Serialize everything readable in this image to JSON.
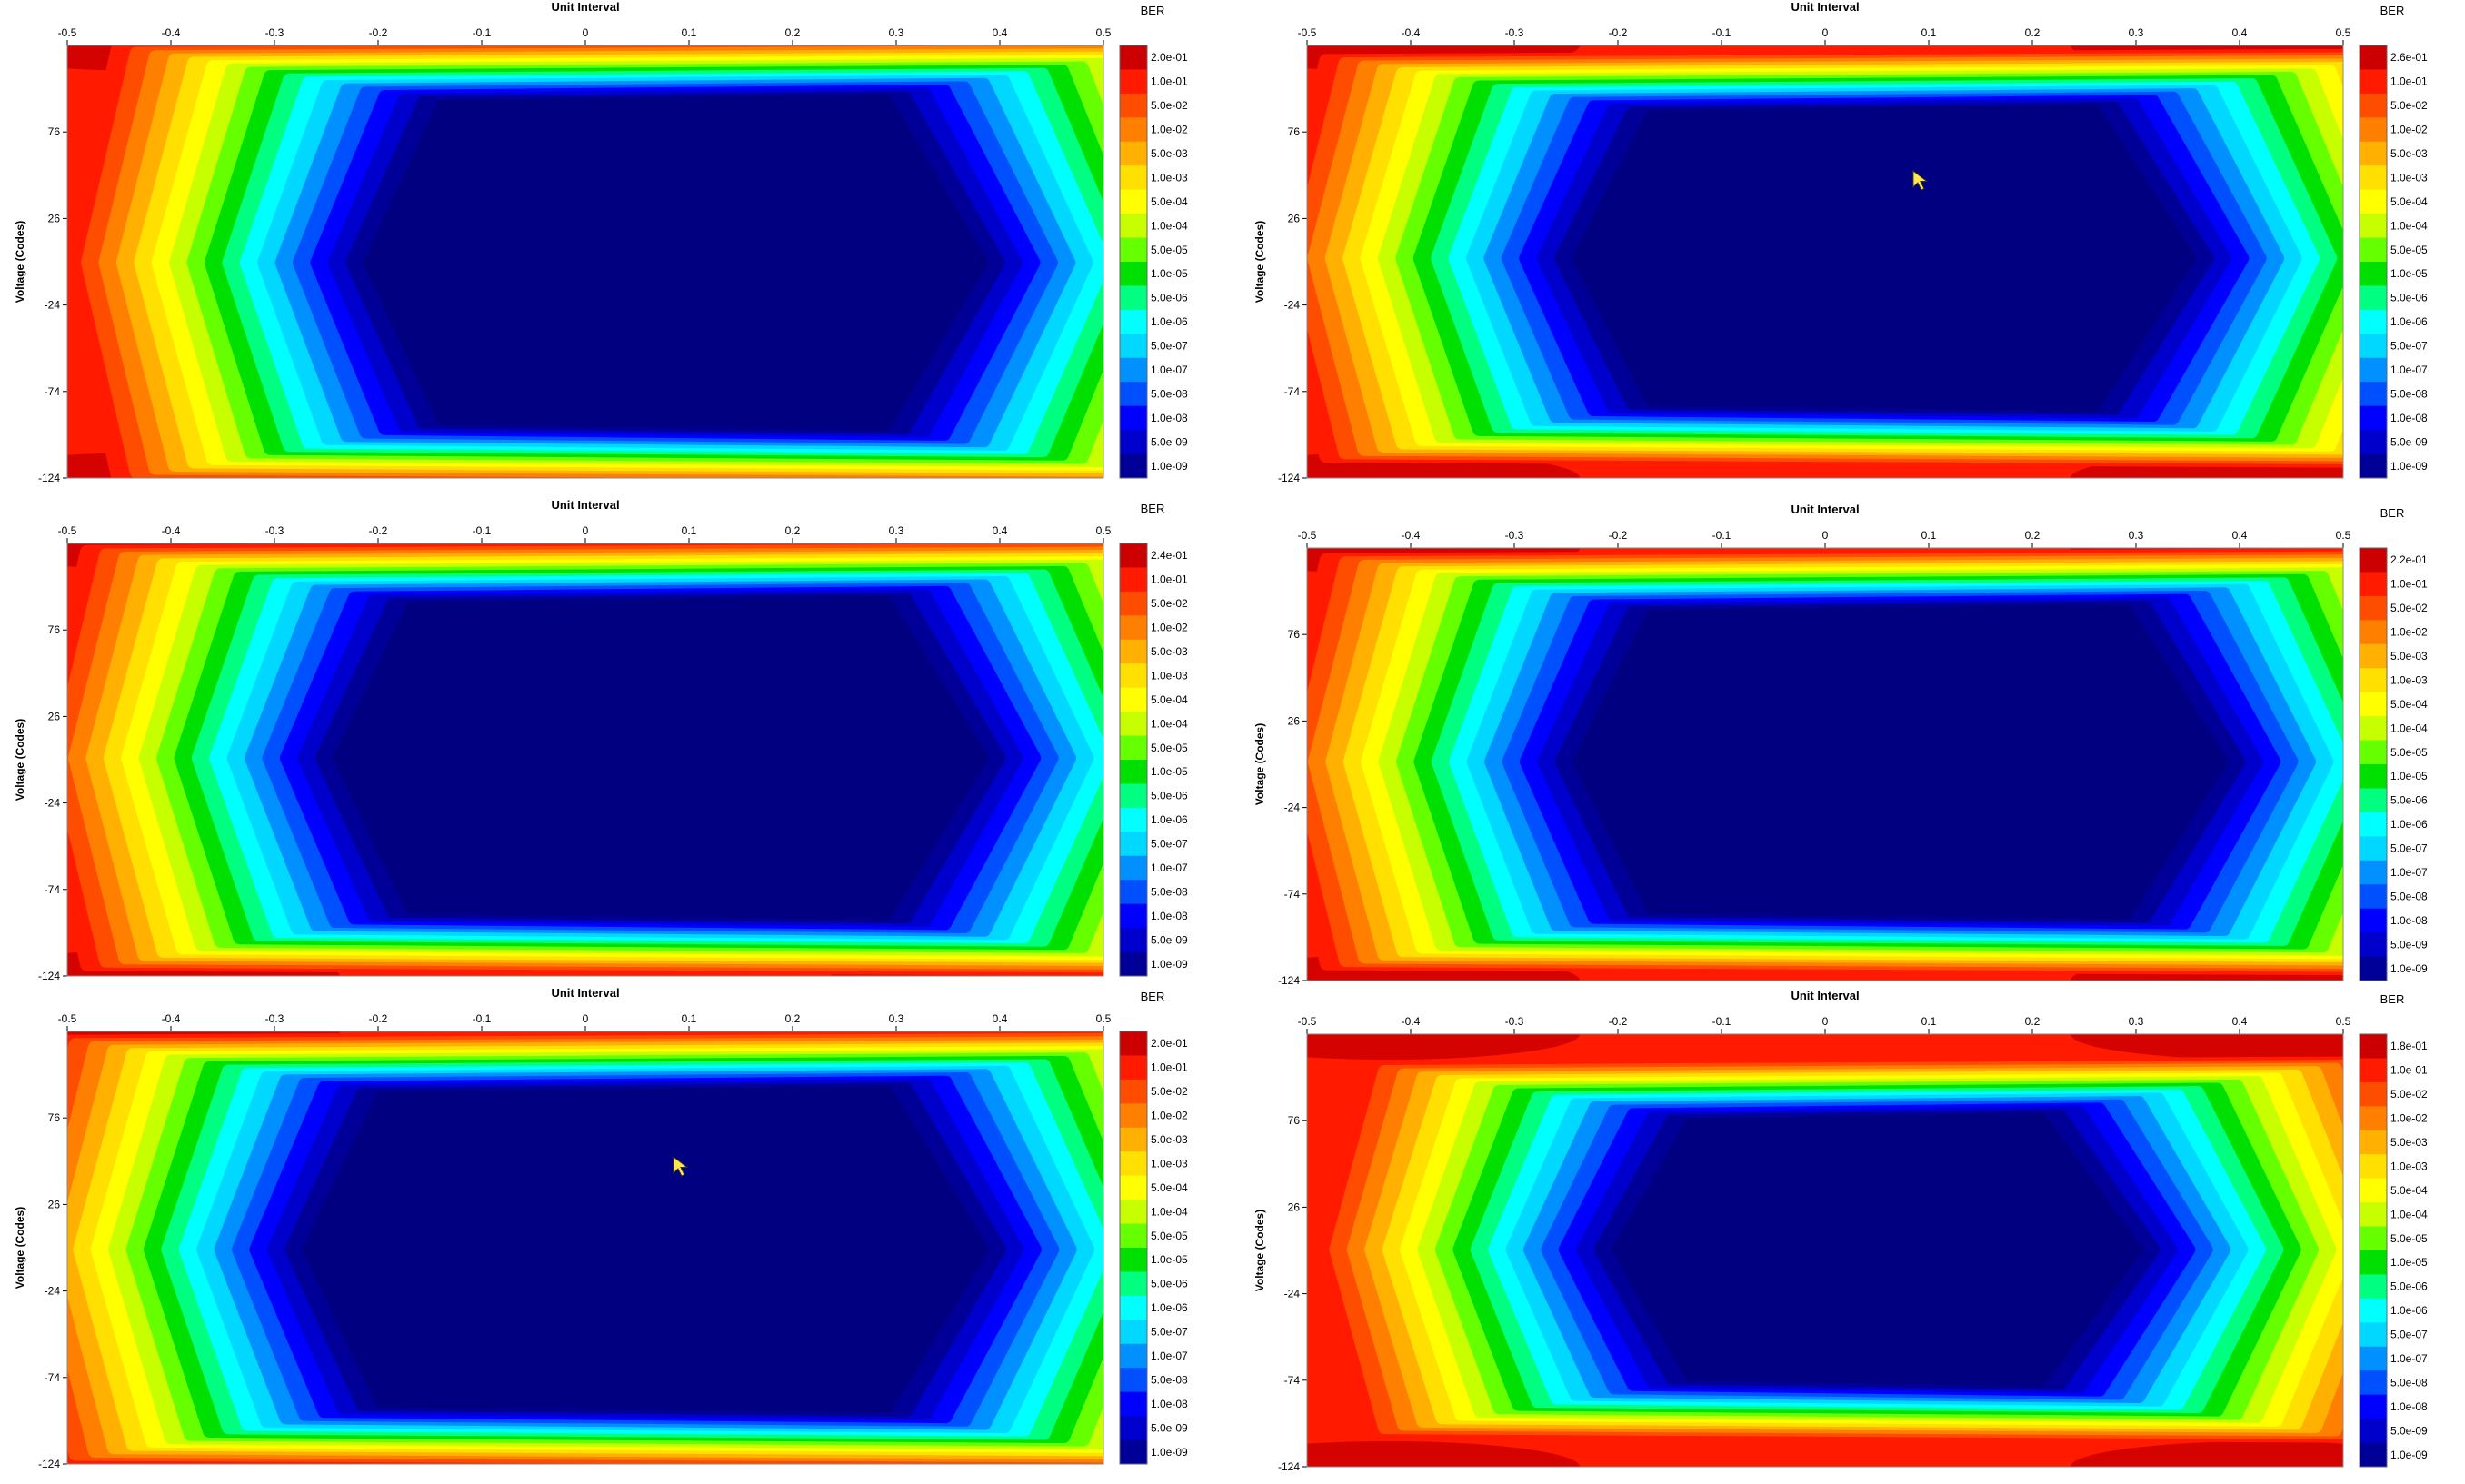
{
  "colors": {
    "scale": [
      "#cc0000",
      "#ff1a00",
      "#ff4d00",
      "#ff7f00",
      "#ffb000",
      "#ffe000",
      "#ffff00",
      "#c8ff00",
      "#66ff00",
      "#00e000",
      "#00ff80",
      "#00ffff",
      "#00d8ff",
      "#0090ff",
      "#0050ff",
      "#0000ff",
      "#0000cc",
      "#000099",
      "#000080"
    ],
    "eye": "#000080",
    "corner": "#cc0000"
  },
  "cursor_icon": "mouse-pointer-icon",
  "plots": [
    {
      "id": "p1",
      "x_title": "Unit Interval",
      "y_title": "Voltage (Codes)",
      "x_ticks": [
        "-0.5",
        "-0.4",
        "-0.3",
        "-0.2",
        "-0.1",
        "0",
        "0.1",
        "0.2",
        "0.3",
        "0.4",
        "0.5"
      ],
      "y_ticks": [
        "76",
        "26",
        "-24",
        "-74",
        "-124"
      ],
      "cbar_title": "BER",
      "cbar_labels": [
        "2.0e-01",
        "1.0e-01",
        "5.0e-02",
        "1.0e-02",
        "5.0e-03",
        "1.0e-03",
        "5.0e-04",
        "1.0e-04",
        "5.0e-05",
        "1.0e-05",
        "5.0e-06",
        "1.0e-06",
        "5.0e-07",
        "1.0e-07",
        "5.0e-08",
        "1.0e-08",
        "5.0e-09",
        "1.0e-09"
      ],
      "chart_data": {
        "type": "heatmap",
        "xlim": [
          -0.5,
          0.5
        ],
        "ylim": [
          -124,
          126
        ],
        "eye_ui": [
          -0.22,
          0.37
        ],
        "eye_v": [
          -93,
          94
        ],
        "cursor": false
      }
    },
    {
      "id": "p2",
      "x_title": "Unit Interval",
      "y_title": "Voltage (Codes)",
      "x_ticks": [
        "-0.5",
        "-0.4",
        "-0.3",
        "-0.2",
        "-0.1",
        "0",
        "0.1",
        "0.2",
        "0.3",
        "0.4",
        "0.5"
      ],
      "y_ticks": [
        "76",
        "26",
        "-24",
        "-74",
        "-124"
      ],
      "cbar_title": "BER",
      "cbar_labels": [
        "2.6e-01",
        "1.0e-01",
        "5.0e-02",
        "1.0e-02",
        "5.0e-03",
        "1.0e-03",
        "5.0e-04",
        "1.0e-04",
        "5.0e-05",
        "1.0e-05",
        "5.0e-06",
        "1.0e-06",
        "5.0e-07",
        "1.0e-07",
        "5.0e-08",
        "1.0e-08",
        "5.0e-09",
        "1.0e-09"
      ],
      "chart_data": {
        "type": "heatmap",
        "xlim": [
          -0.5,
          0.5
        ],
        "ylim": [
          -124,
          126
        ],
        "eye_ui": [
          -0.25,
          0.34
        ],
        "eye_v": [
          -82,
          88
        ],
        "cursor": true
      }
    },
    {
      "id": "p3",
      "x_title": "Unit Interval",
      "y_title": "Voltage (Codes)",
      "x_ticks": [
        "-0.5",
        "-0.4",
        "-0.3",
        "-0.2",
        "-0.1",
        "0",
        "0.1",
        "0.2",
        "0.3",
        "0.4",
        "0.5"
      ],
      "y_ticks": [
        "76",
        "26",
        "-24",
        "-74",
        "-124"
      ],
      "cbar_title": "BER",
      "cbar_labels": [
        "2.4e-01",
        "1.0e-01",
        "5.0e-02",
        "1.0e-02",
        "5.0e-03",
        "1.0e-03",
        "5.0e-04",
        "1.0e-04",
        "5.0e-05",
        "1.0e-05",
        "5.0e-06",
        "1.0e-06",
        "5.0e-07",
        "1.0e-07",
        "5.0e-08",
        "1.0e-08",
        "5.0e-09",
        "1.0e-09"
      ],
      "chart_data": {
        "type": "heatmap",
        "xlim": [
          -0.5,
          0.5
        ],
        "ylim": [
          -124,
          126
        ],
        "eye_ui": [
          -0.25,
          0.37
        ],
        "eye_v": [
          -88,
          92
        ],
        "cursor": false
      }
    },
    {
      "id": "p4",
      "x_title": "Unit Interval",
      "y_title": "Voltage (Codes)",
      "x_ticks": [
        "-0.5",
        "-0.4",
        "-0.3",
        "-0.2",
        "-0.1",
        "0",
        "0.1",
        "0.2",
        "0.3",
        "0.4",
        "0.5"
      ],
      "y_ticks": [
        "76",
        "26",
        "-24",
        "-74",
        "-124"
      ],
      "cbar_title": "BER",
      "cbar_labels": [
        "2.2e-01",
        "1.0e-01",
        "5.0e-02",
        "1.0e-02",
        "5.0e-03",
        "1.0e-03",
        "5.0e-04",
        "1.0e-04",
        "5.0e-05",
        "1.0e-05",
        "5.0e-06",
        "1.0e-06",
        "5.0e-07",
        "1.0e-07",
        "5.0e-08",
        "1.0e-08",
        "5.0e-09",
        "1.0e-09"
      ],
      "chart_data": {
        "type": "heatmap",
        "xlim": [
          -0.5,
          0.5
        ],
        "ylim": [
          -124,
          126
        ],
        "eye_ui": [
          -0.25,
          0.37
        ],
        "eye_v": [
          -85,
          90
        ],
        "cursor": false
      }
    },
    {
      "id": "p5",
      "x_title": "Unit Interval",
      "y_title": "Voltage (Codes)",
      "x_ticks": [
        "-0.5",
        "-0.4",
        "-0.3",
        "-0.2",
        "-0.1",
        "0",
        "0.1",
        "0.2",
        "0.3",
        "0.4",
        "0.5"
      ],
      "y_ticks": [
        "76",
        "26",
        "-24",
        "-74",
        "-124"
      ],
      "cbar_title": "BER",
      "cbar_labels": [
        "2.0e-01",
        "1.0e-01",
        "5.0e-02",
        "1.0e-02",
        "5.0e-03",
        "1.0e-03",
        "5.0e-04",
        "1.0e-04",
        "5.0e-05",
        "1.0e-05",
        "5.0e-06",
        "1.0e-06",
        "5.0e-07",
        "1.0e-07",
        "5.0e-08",
        "1.0e-08",
        "5.0e-09",
        "1.0e-09"
      ],
      "chart_data": {
        "type": "heatmap",
        "xlim": [
          -0.5,
          0.5
        ],
        "ylim": [
          -124,
          126
        ],
        "eye_ui": [
          -0.28,
          0.37
        ],
        "eye_v": [
          -91,
          91
        ],
        "cursor": true
      }
    },
    {
      "id": "p6",
      "x_title": "Unit Interval",
      "y_title": "Voltage (Codes)",
      "x_ticks": [
        "-0.5",
        "-0.4",
        "-0.3",
        "-0.2",
        "-0.1",
        "0",
        "0.1",
        "0.2",
        "0.3",
        "0.4",
        "0.5"
      ],
      "y_ticks": [
        "76",
        "26",
        "-24",
        "-74",
        "-124"
      ],
      "cbar_title": "BER",
      "cbar_labels": [
        "1.8e-01",
        "1.0e-01",
        "5.0e-02",
        "1.0e-02",
        "5.0e-03",
        "1.0e-03",
        "5.0e-04",
        "1.0e-04",
        "5.0e-05",
        "1.0e-05",
        "5.0e-06",
        "1.0e-06",
        "5.0e-07",
        "1.0e-07",
        "5.0e-08",
        "1.0e-08",
        "5.0e-09",
        "1.0e-09"
      ],
      "chart_data": {
        "type": "heatmap",
        "xlim": [
          -0.5,
          0.5
        ],
        "ylim": [
          -124,
          126
        ],
        "eye_ui": [
          -0.21,
          0.29
        ],
        "eye_v": [
          -74,
          77
        ],
        "cursor": false
      }
    }
  ]
}
